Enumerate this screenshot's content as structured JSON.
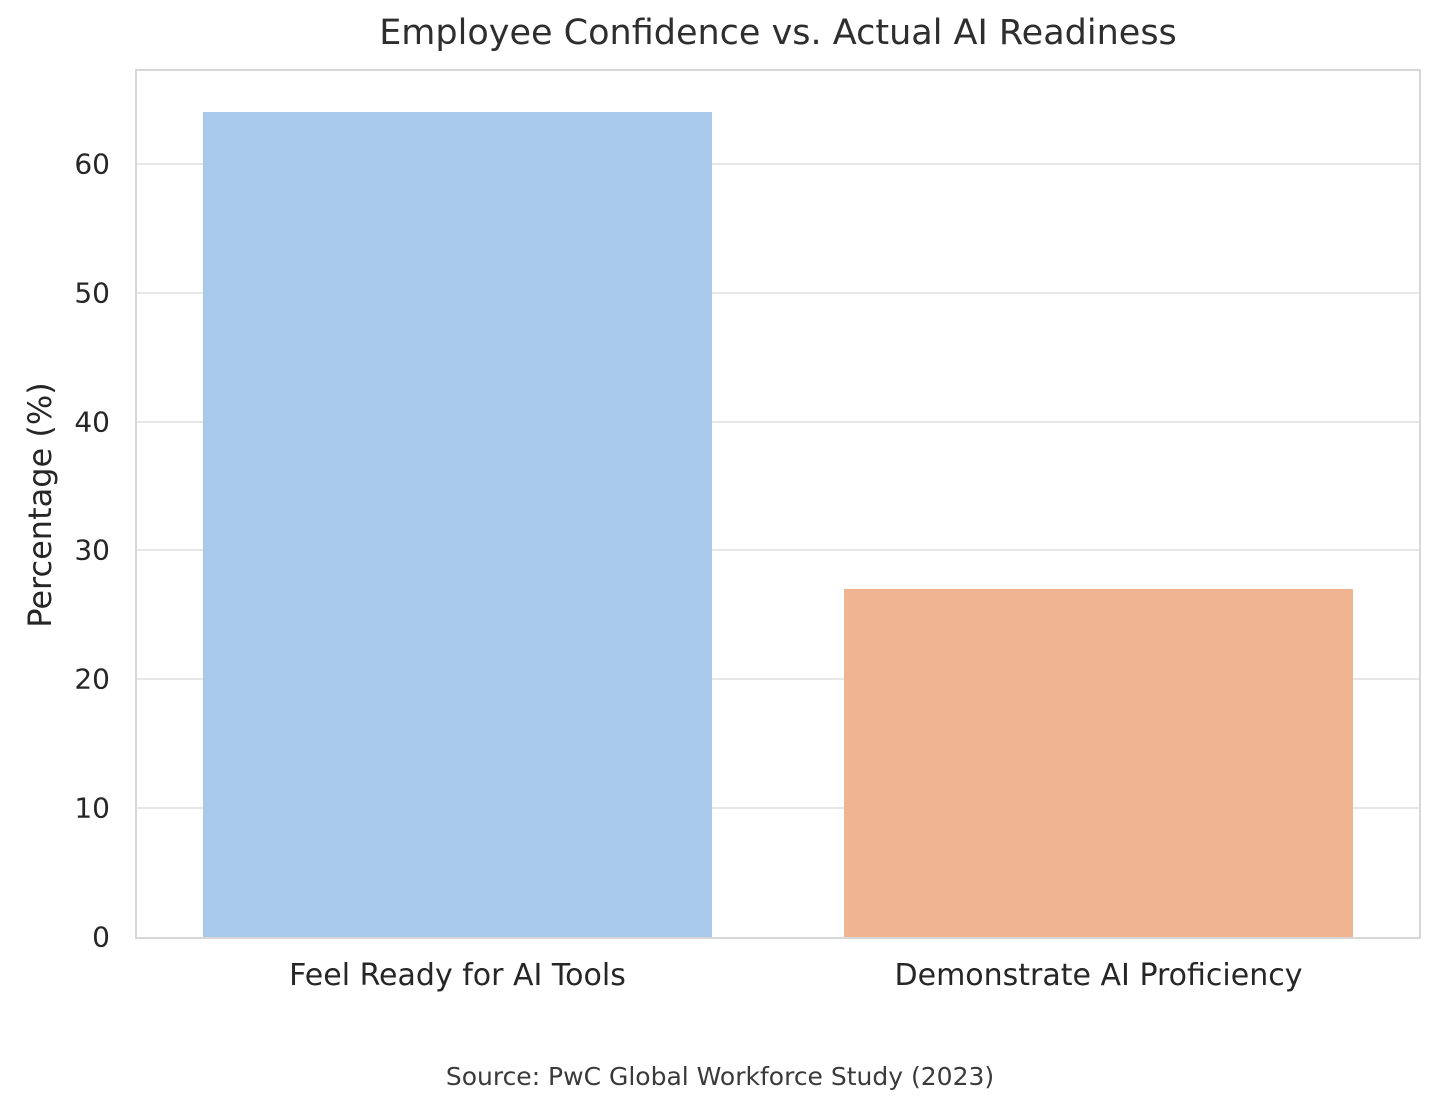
{
  "chart_data": {
    "type": "bar",
    "title": "Employee Confidence vs. Actual AI Readiness",
    "ylabel": "Percentage (%)",
    "xlabel": "",
    "source": "Source: PwC Global Workforce Study (2023)",
    "categories": [
      "Feel Ready for AI Tools",
      "Demonstrate AI Proficiency"
    ],
    "values": [
      64,
      27
    ],
    "bar_colors": [
      "#a9c9eb",
      "#f0b490"
    ],
    "ylim": [
      0,
      67.2
    ],
    "yticks": [
      0,
      10,
      20,
      30,
      40,
      50,
      60
    ],
    "grid": "horizontal",
    "legend": "none",
    "colors": {
      "gridline": "#e7e7e7",
      "spine": "#d7d7d7",
      "text": "#262626"
    }
  }
}
